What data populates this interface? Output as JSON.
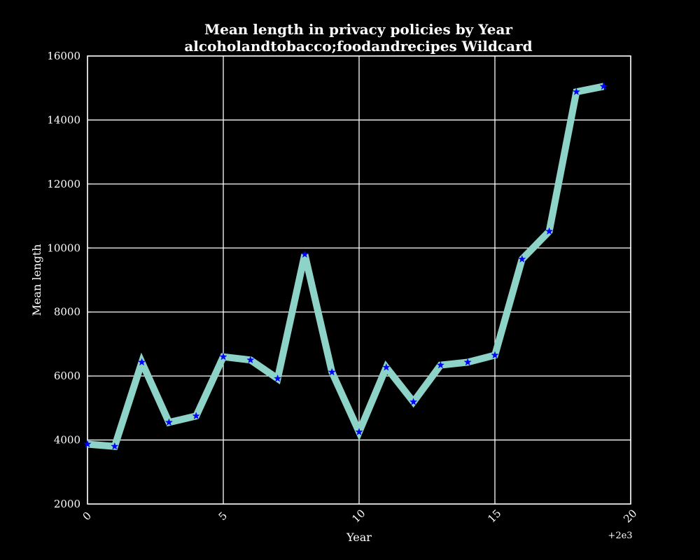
{
  "chart_data": {
    "type": "line",
    "title": "Mean length in privacy policies by Year",
    "subtitle": "alcoholandtobacco;foodandrecipes Wildcard",
    "xlabel": "Year",
    "ylabel": "Mean length",
    "x_offset_label": "+2e3",
    "xlim": [
      0,
      20
    ],
    "ylim": [
      2000,
      16000
    ],
    "x_ticks": [
      "0",
      "5",
      "10",
      "15",
      "20"
    ],
    "y_ticks": [
      "2000",
      "4000",
      "6000",
      "8000",
      "10000",
      "12000",
      "14000",
      "16000"
    ],
    "grid": true,
    "series": [
      {
        "x": [
          0,
          1,
          2,
          3,
          4,
          5,
          6,
          7,
          8,
          9,
          10,
          11,
          12,
          13,
          14,
          15,
          16,
          17,
          18,
          19
        ],
        "values": [
          3870,
          3800,
          6430,
          4550,
          4750,
          6600,
          6500,
          5920,
          9800,
          6120,
          4250,
          6270,
          5190,
          6340,
          6430,
          6650,
          9650,
          10520,
          14880,
          15050
        ]
      }
    ],
    "colors": {
      "background": "#000000",
      "line": "#8dd3c7",
      "marker": "#0000ff",
      "grid": "#ffffff",
      "text": "#ffffff"
    }
  }
}
